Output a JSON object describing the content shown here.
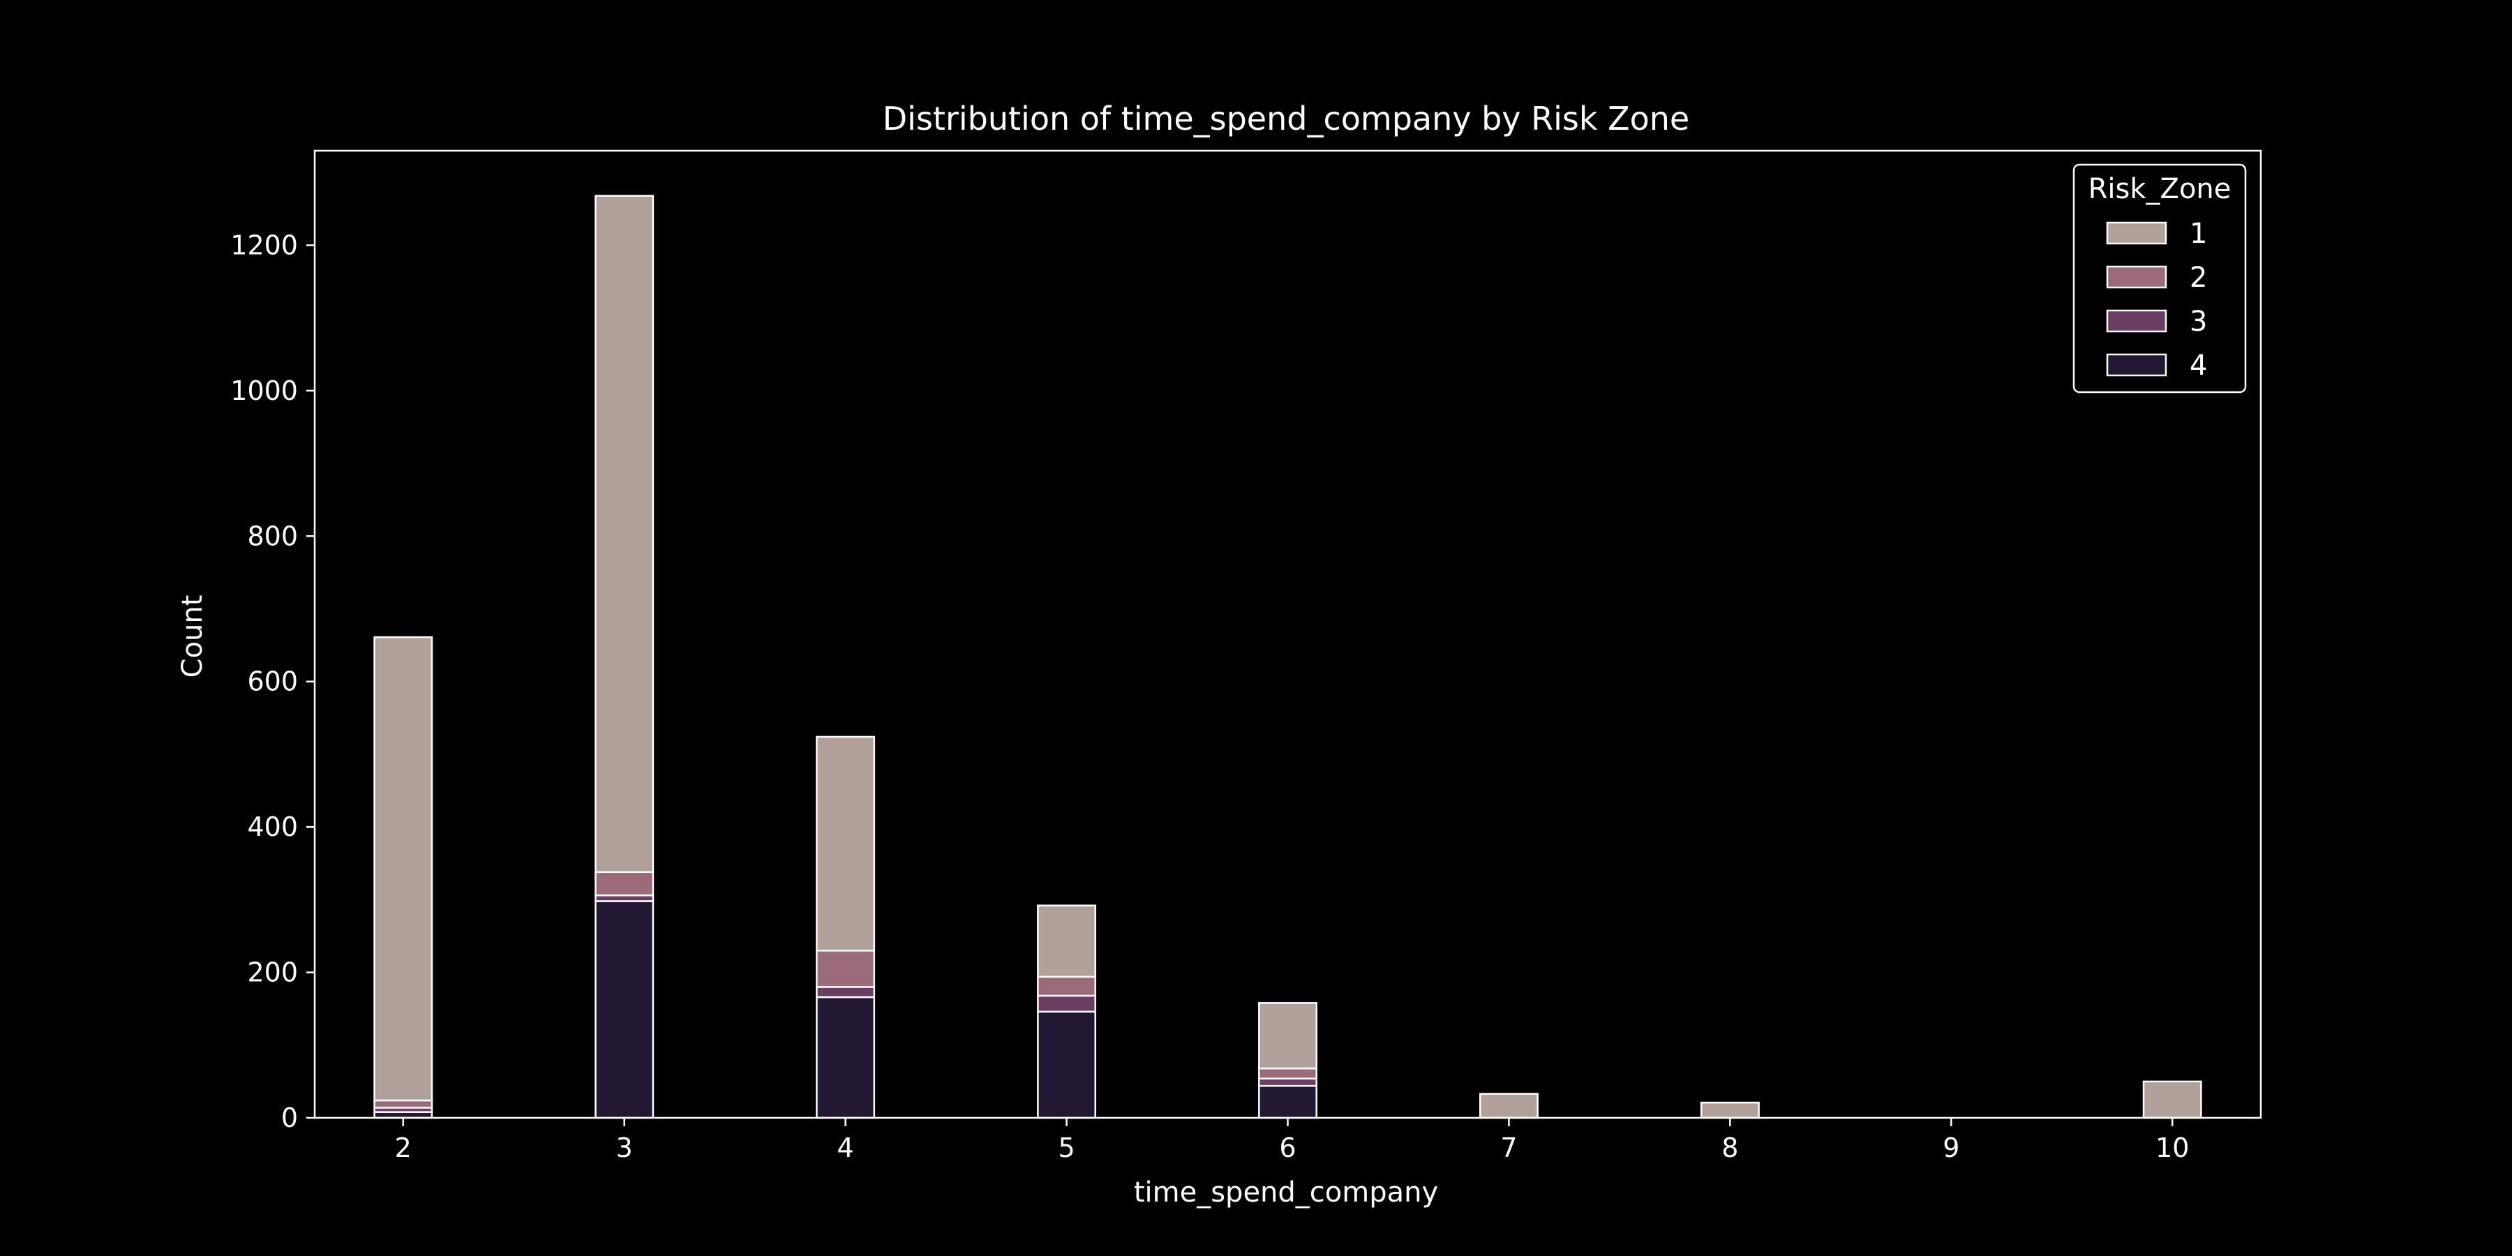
{
  "chart_data": {
    "type": "bar",
    "stacked": true,
    "title": "Distribution of time_spend_company by Risk Zone",
    "xlabel": "time_spend_company",
    "ylabel": "Count",
    "x": [
      2,
      3,
      4,
      5,
      6,
      7,
      8,
      9,
      10
    ],
    "xlim": [
      1.6,
      10.4
    ],
    "ylim": [
      0,
      1330
    ],
    "xticks": [
      2,
      3,
      4,
      5,
      6,
      7,
      8,
      9,
      10
    ],
    "yticks": [
      0,
      200,
      400,
      600,
      800,
      1000,
      1200
    ],
    "grid": false,
    "legend": {
      "title": "Risk_Zone",
      "placement": "top-right"
    },
    "series": [
      {
        "name": "4",
        "color": "#221833",
        "values": [
          8,
          298,
          166,
          146,
          44,
          0,
          0,
          0,
          0
        ]
      },
      {
        "name": "3",
        "color": "#6b3e63",
        "values": [
          6,
          8,
          14,
          22,
          10,
          0,
          0,
          0,
          0
        ]
      },
      {
        "name": "2",
        "color": "#9c6b7a",
        "values": [
          10,
          32,
          50,
          26,
          14,
          0,
          0,
          0,
          0
        ]
      },
      {
        "name": "1",
        "color": "#b2a19a",
        "values": [
          637,
          930,
          294,
          98,
          90,
          33,
          21,
          0,
          50
        ]
      }
    ]
  }
}
